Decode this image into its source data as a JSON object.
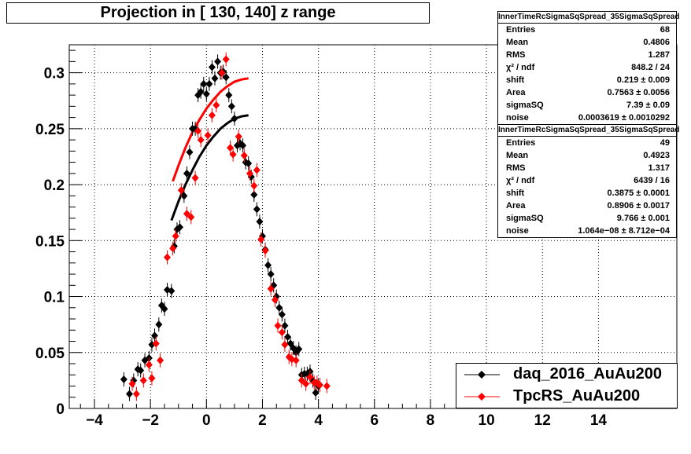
{
  "title": "Projection in [ 130, 140] z range",
  "stats": [
    {
      "name": "InnerTimeRcSigmaSqSpread_35SigmaSqSpread",
      "rows": [
        {
          "label": "Entries",
          "value": "68"
        },
        {
          "label": "Mean",
          "value": "0.4806"
        },
        {
          "label": "RMS",
          "value": "1.287"
        },
        {
          "label": "χ² / ndf",
          "value": "848.2 / 24"
        },
        {
          "label": "shift",
          "value": "0.219 ± 0.009"
        },
        {
          "label": "Area",
          "value": "0.7563 ± 0.0056"
        },
        {
          "label": "sigmaSQ",
          "value": "7.39 ± 0.09"
        },
        {
          "label": "noise",
          "value": "0.0003619 ± 0.0010292"
        }
      ]
    },
    {
      "name": "InnerTimeRcSigmaSqSpread_35SigmaSqSpread",
      "rows": [
        {
          "label": "Entries",
          "value": "49"
        },
        {
          "label": "Mean",
          "value": "0.4923"
        },
        {
          "label": "RMS",
          "value": "1.317"
        },
        {
          "label": "χ² / ndf",
          "value": "6439 / 16"
        },
        {
          "label": "shift",
          "value": "0.3875 ± 0.0001"
        },
        {
          "label": "Area",
          "value": "0.8906 ± 0.0017"
        },
        {
          "label": "sigmaSQ",
          "value": "9.766 ± 0.001"
        },
        {
          "label": "noise",
          "value": "1.064e−08 ± 8.712e−04"
        }
      ]
    }
  ],
  "legend": [
    {
      "label": "daq_2016_AuAu200",
      "color": "#000000"
    },
    {
      "label": "TpcRS_AuAu200",
      "color": "#ff0000"
    }
  ],
  "chart_data": {
    "type": "scatter",
    "title": "Projection in [ 130, 140] z range",
    "xlim": [
      -4.9,
      16.8
    ],
    "ylim": [
      0,
      0.325
    ],
    "grid": true,
    "legend_position": "bottom-right",
    "x_ticks": [
      -4,
      -2,
      0,
      2,
      4,
      6,
      8,
      10,
      12,
      14
    ],
    "x_tick_labels": [
      "−4",
      "−2",
      "0",
      "2",
      "4",
      "6",
      "8",
      "10",
      "12",
      "14"
    ],
    "y_ticks": [
      0,
      0.05,
      0.1,
      0.15,
      0.2,
      0.25,
      0.3
    ],
    "y_tick_labels": [
      "0",
      "0.05",
      "0.1",
      "0.15",
      "0.2",
      "0.25",
      "0.3"
    ],
    "series": [
      {
        "name": "daq_2016_AuAu200",
        "color": "#000000",
        "marker": "diamond",
        "x": [
          -2.95,
          -2.75,
          -2.6,
          -2.45,
          -2.35,
          -2.2,
          -2.05,
          -1.95,
          -1.85,
          -1.7,
          -1.6,
          -1.5,
          -1.4,
          -1.25,
          -1.15,
          -1.05,
          -0.95,
          -0.8,
          -0.7,
          -0.6,
          -0.5,
          -0.4,
          -0.3,
          -0.2,
          -0.1,
          0.0,
          0.1,
          0.2,
          0.3,
          0.4,
          0.5,
          0.6,
          0.7,
          0.8,
          0.9,
          1.0,
          1.1,
          1.2,
          1.3,
          1.4,
          1.5,
          1.6,
          1.7,
          1.8,
          1.9,
          2.0,
          2.1,
          2.2,
          2.3,
          2.4,
          2.5,
          2.6,
          2.7,
          2.8,
          2.9,
          3.0,
          3.1,
          3.2,
          3.3,
          3.4,
          3.5,
          3.6,
          3.7,
          3.8,
          3.9,
          4.0
        ],
        "y": [
          0.026,
          0.013,
          0.025,
          0.035,
          0.034,
          0.043,
          0.045,
          0.057,
          0.065,
          0.075,
          0.092,
          0.089,
          0.106,
          0.105,
          0.145,
          0.16,
          0.162,
          0.19,
          0.21,
          0.229,
          0.25,
          0.25,
          0.28,
          0.283,
          0.29,
          0.281,
          0.29,
          0.305,
          0.295,
          0.31,
          0.3,
          0.301,
          0.296,
          0.28,
          0.27,
          0.259,
          0.235,
          0.237,
          0.235,
          0.22,
          0.219,
          0.207,
          0.191,
          0.178,
          0.167,
          0.154,
          0.142,
          0.128,
          0.12,
          0.11,
          0.1,
          0.09,
          0.084,
          0.074,
          0.064,
          0.058,
          0.054,
          0.05,
          0.053,
          0.03,
          0.031,
          0.031,
          0.033,
          0.025,
          0.014,
          0.02
        ]
      },
      {
        "name": "TpcRS_AuAu200",
        "color": "#ff0000",
        "marker": "diamond",
        "x": [
          -2.65,
          -2.5,
          -2.25,
          -2.05,
          -1.95,
          -1.8,
          -1.65,
          -1.4,
          -1.2,
          -1.1,
          -0.9,
          -0.7,
          -0.55,
          -0.4,
          -0.3,
          -0.2,
          0.05,
          0.2,
          0.35,
          0.55,
          0.7,
          0.85,
          0.95,
          1.15,
          1.35,
          1.55,
          1.7,
          1.8,
          1.95,
          2.1,
          2.3,
          2.45,
          2.55,
          2.7,
          2.8,
          2.95,
          3.05,
          3.2,
          3.4,
          3.55,
          3.7,
          3.85,
          3.95,
          4.05,
          4.3
        ],
        "y": [
          0.022,
          0.013,
          0.025,
          0.039,
          0.027,
          0.058,
          0.043,
          0.135,
          0.143,
          0.154,
          0.195,
          0.174,
          0.171,
          0.206,
          0.248,
          0.24,
          0.244,
          0.262,
          0.271,
          0.3,
          0.312,
          0.233,
          0.227,
          0.243,
          0.226,
          0.21,
          0.199,
          0.213,
          0.151,
          0.141,
          0.107,
          0.097,
          0.074,
          0.068,
          0.057,
          0.046,
          0.044,
          0.043,
          0.025,
          0.022,
          0.028,
          0.023,
          0.023,
          0.021,
          0.02
        ]
      },
      {
        "name": "fit daq_2016_AuAu200",
        "color": "#000000",
        "style": "curve",
        "x": [
          -1.25,
          -1.0,
          -0.75,
          -0.5,
          -0.25,
          0.0,
          0.25,
          0.5,
          0.75,
          1.0,
          1.25,
          1.5
        ],
        "y": [
          0.168,
          0.185,
          0.2,
          0.213,
          0.225,
          0.235,
          0.243,
          0.25,
          0.255,
          0.259,
          0.261,
          0.262
        ]
      },
      {
        "name": "fit TpcRS_AuAu200",
        "color": "#ff0000",
        "style": "curve",
        "x": [
          -1.2,
          -1.0,
          -0.75,
          -0.5,
          -0.25,
          0.0,
          0.25,
          0.5,
          0.75,
          1.0,
          1.25,
          1.5
        ],
        "y": [
          0.203,
          0.217,
          0.233,
          0.247,
          0.258,
          0.268,
          0.276,
          0.283,
          0.288,
          0.292,
          0.294,
          0.295
        ]
      }
    ]
  }
}
